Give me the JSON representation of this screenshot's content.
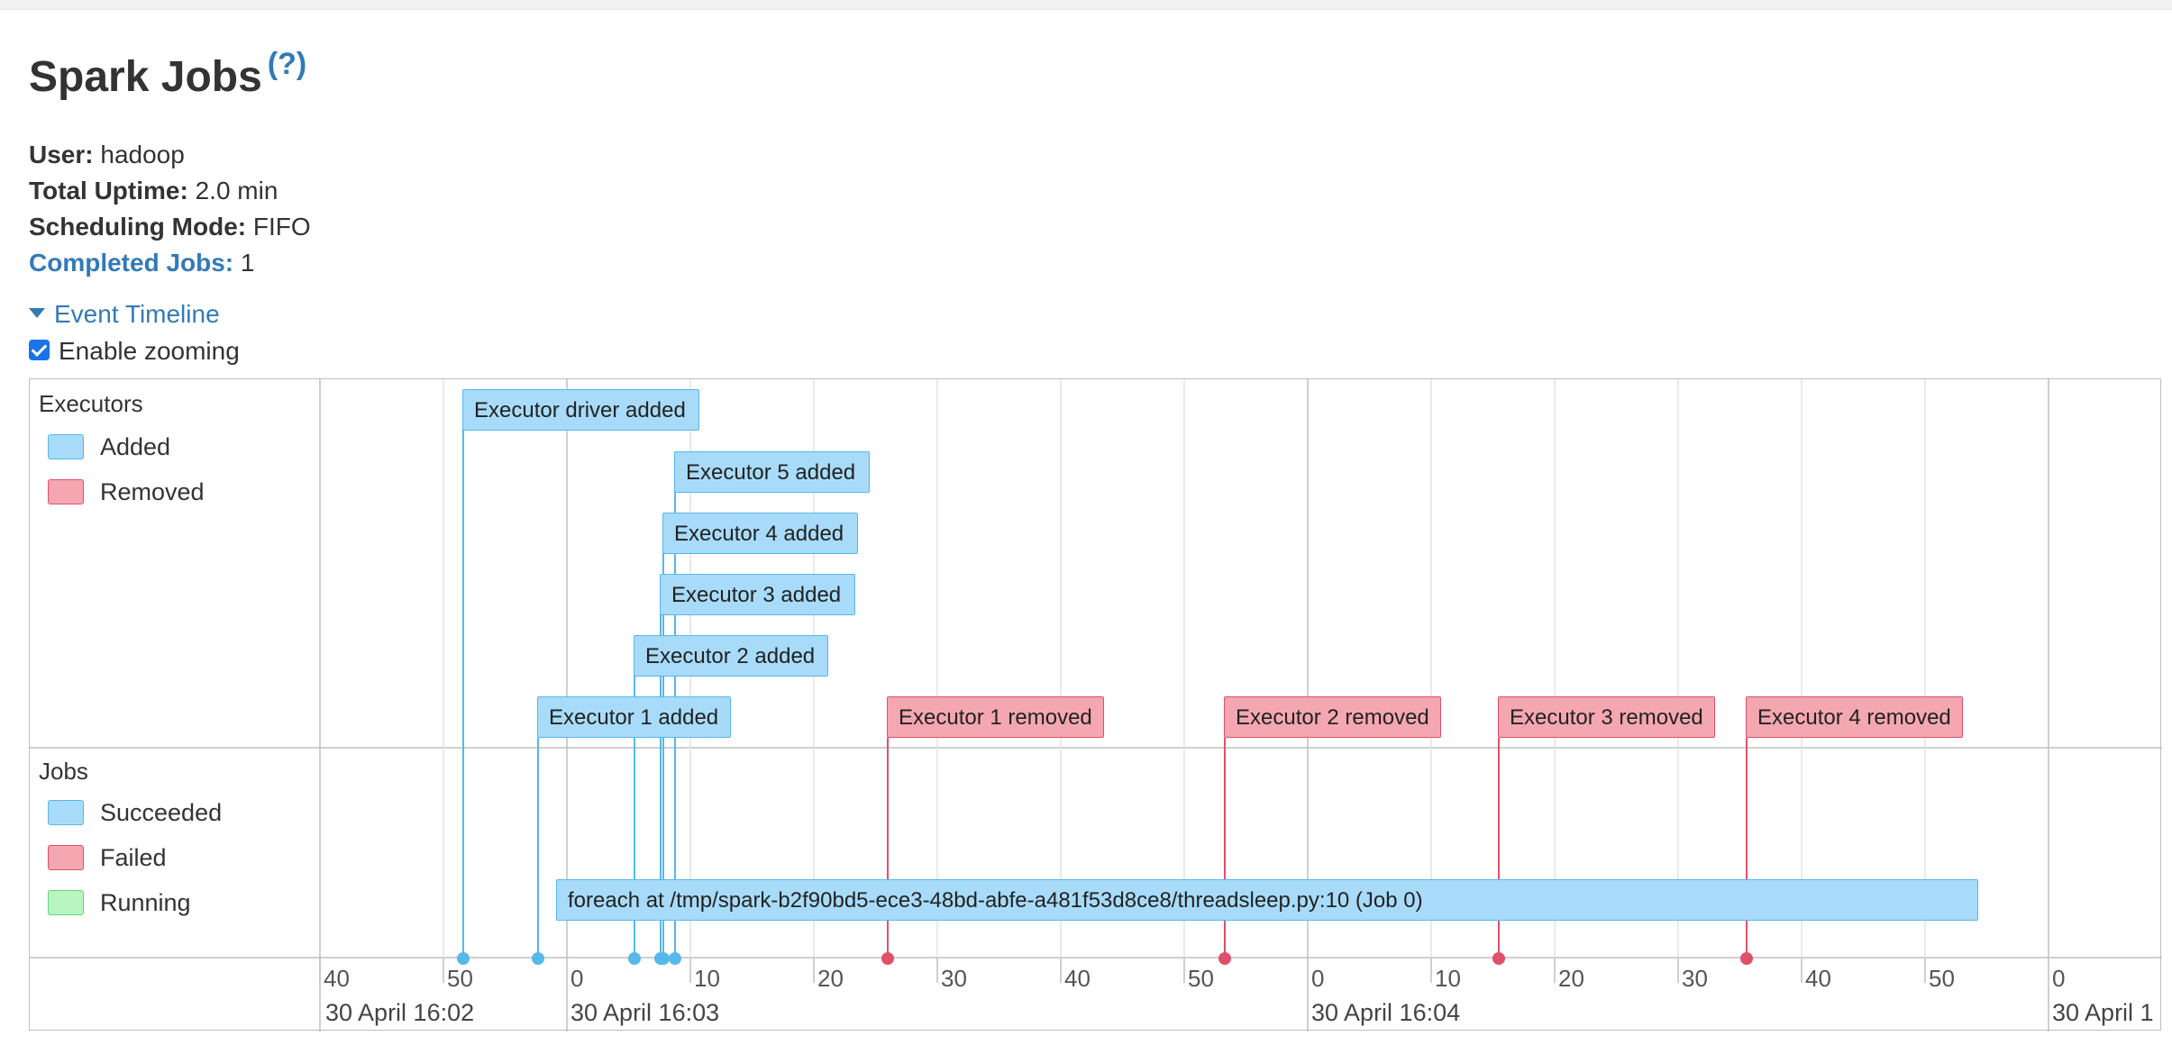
{
  "page": {
    "title": "Spark Jobs",
    "help": "(?)"
  },
  "info": {
    "user_label": "User:",
    "user_value": "hadoop",
    "uptime_label": "Total Uptime:",
    "uptime_value": "2.0 min",
    "scheduling_label": "Scheduling Mode:",
    "scheduling_value": "FIFO",
    "completed_label": "Completed Jobs:",
    "completed_value": "1"
  },
  "timeline": {
    "toggle_label": "Event Timeline",
    "zoom_label": "Enable zooming",
    "zoom_checked": true,
    "executors_legend": {
      "title": "Executors",
      "added": "Added",
      "removed": "Removed"
    },
    "jobs_legend": {
      "title": "Jobs",
      "succeeded": "Succeeded",
      "failed": "Failed",
      "running": "Running"
    },
    "executor_events": [
      {
        "label": "Executor driver added",
        "type": "added"
      },
      {
        "label": "Executor 5 added",
        "type": "added"
      },
      {
        "label": "Executor 4 added",
        "type": "added"
      },
      {
        "label": "Executor 3 added",
        "type": "added"
      },
      {
        "label": "Executor 2 added",
        "type": "added"
      },
      {
        "label": "Executor 1 added",
        "type": "added"
      },
      {
        "label": "Executor 1 removed",
        "type": "removed"
      },
      {
        "label": "Executor 2 removed",
        "type": "removed"
      },
      {
        "label": "Executor 3 removed",
        "type": "removed"
      },
      {
        "label": "Executor 4 removed",
        "type": "removed"
      }
    ],
    "job": {
      "label": "foreach at /tmp/spark-b2f90bd5-ece3-48bd-abfe-a481f53d8ce8/threadsleep.py:10 (Job 0)",
      "status": "succeeded"
    },
    "axis_ticks": [
      "40",
      "50",
      "0",
      "10",
      "20",
      "30",
      "40",
      "50",
      "0",
      "10",
      "20",
      "30",
      "40",
      "50",
      "0"
    ],
    "axis_dates": [
      "30 April 16:02",
      "30 April 16:03",
      "30 April 16:04",
      "30 April 1"
    ]
  },
  "colors": {
    "link": "#337ab7",
    "added": "#a7dbf9",
    "removed": "#f4a7b1",
    "running": "#b8f5c1"
  }
}
